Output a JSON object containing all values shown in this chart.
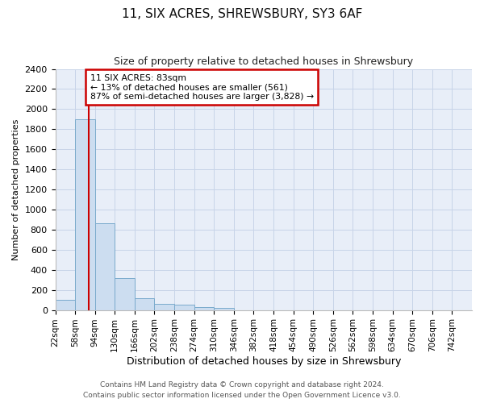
{
  "title": "11, SIX ACRES, SHREWSBURY, SY3 6AF",
  "subtitle": "Size of property relative to detached houses in Shrewsbury",
  "xlabel": "Distribution of detached houses by size in Shrewsbury",
  "ylabel": "Number of detached properties",
  "bin_edges": [
    22,
    58,
    94,
    130,
    166,
    202,
    238,
    274,
    310,
    346,
    382,
    418,
    454,
    490,
    526,
    562,
    598,
    634,
    670,
    706,
    742
  ],
  "bin_labels": [
    "22sqm",
    "58sqm",
    "94sqm",
    "130sqm",
    "166sqm",
    "202sqm",
    "238sqm",
    "274sqm",
    "310sqm",
    "346sqm",
    "382sqm",
    "418sqm",
    "454sqm",
    "490sqm",
    "526sqm",
    "562sqm",
    "598sqm",
    "634sqm",
    "670sqm",
    "706sqm",
    "742sqm"
  ],
  "bar_heights": [
    100,
    1900,
    860,
    315,
    115,
    60,
    50,
    30,
    20,
    0,
    0,
    0,
    0,
    0,
    0,
    0,
    0,
    0,
    0,
    0
  ],
  "bar_color": "#ccddf0",
  "bar_edge_color": "#7aaacc",
  "grid_color": "#c8d4e8",
  "background_color": "#e8eef8",
  "property_sqm": 83,
  "annotation_line1": "11 SIX ACRES: 83sqm",
  "annotation_line2": "← 13% of detached houses are smaller (561)",
  "annotation_line3": "87% of semi-detached houses are larger (3,828) →",
  "annotation_box_color": "#ffffff",
  "annotation_border_color": "#cc0000",
  "red_line_color": "#cc0000",
  "ylim": [
    0,
    2400
  ],
  "yticks": [
    0,
    200,
    400,
    600,
    800,
    1000,
    1200,
    1400,
    1600,
    1800,
    2000,
    2200,
    2400
  ],
  "title_fontsize": 11,
  "subtitle_fontsize": 9,
  "ylabel_fontsize": 8,
  "xlabel_fontsize": 9,
  "tick_fontsize": 8,
  "xtick_fontsize": 7.5,
  "footer_line1": "Contains HM Land Registry data © Crown copyright and database right 2024.",
  "footer_line2": "Contains public sector information licensed under the Open Government Licence v3.0.",
  "footer_fontsize": 6.5
}
